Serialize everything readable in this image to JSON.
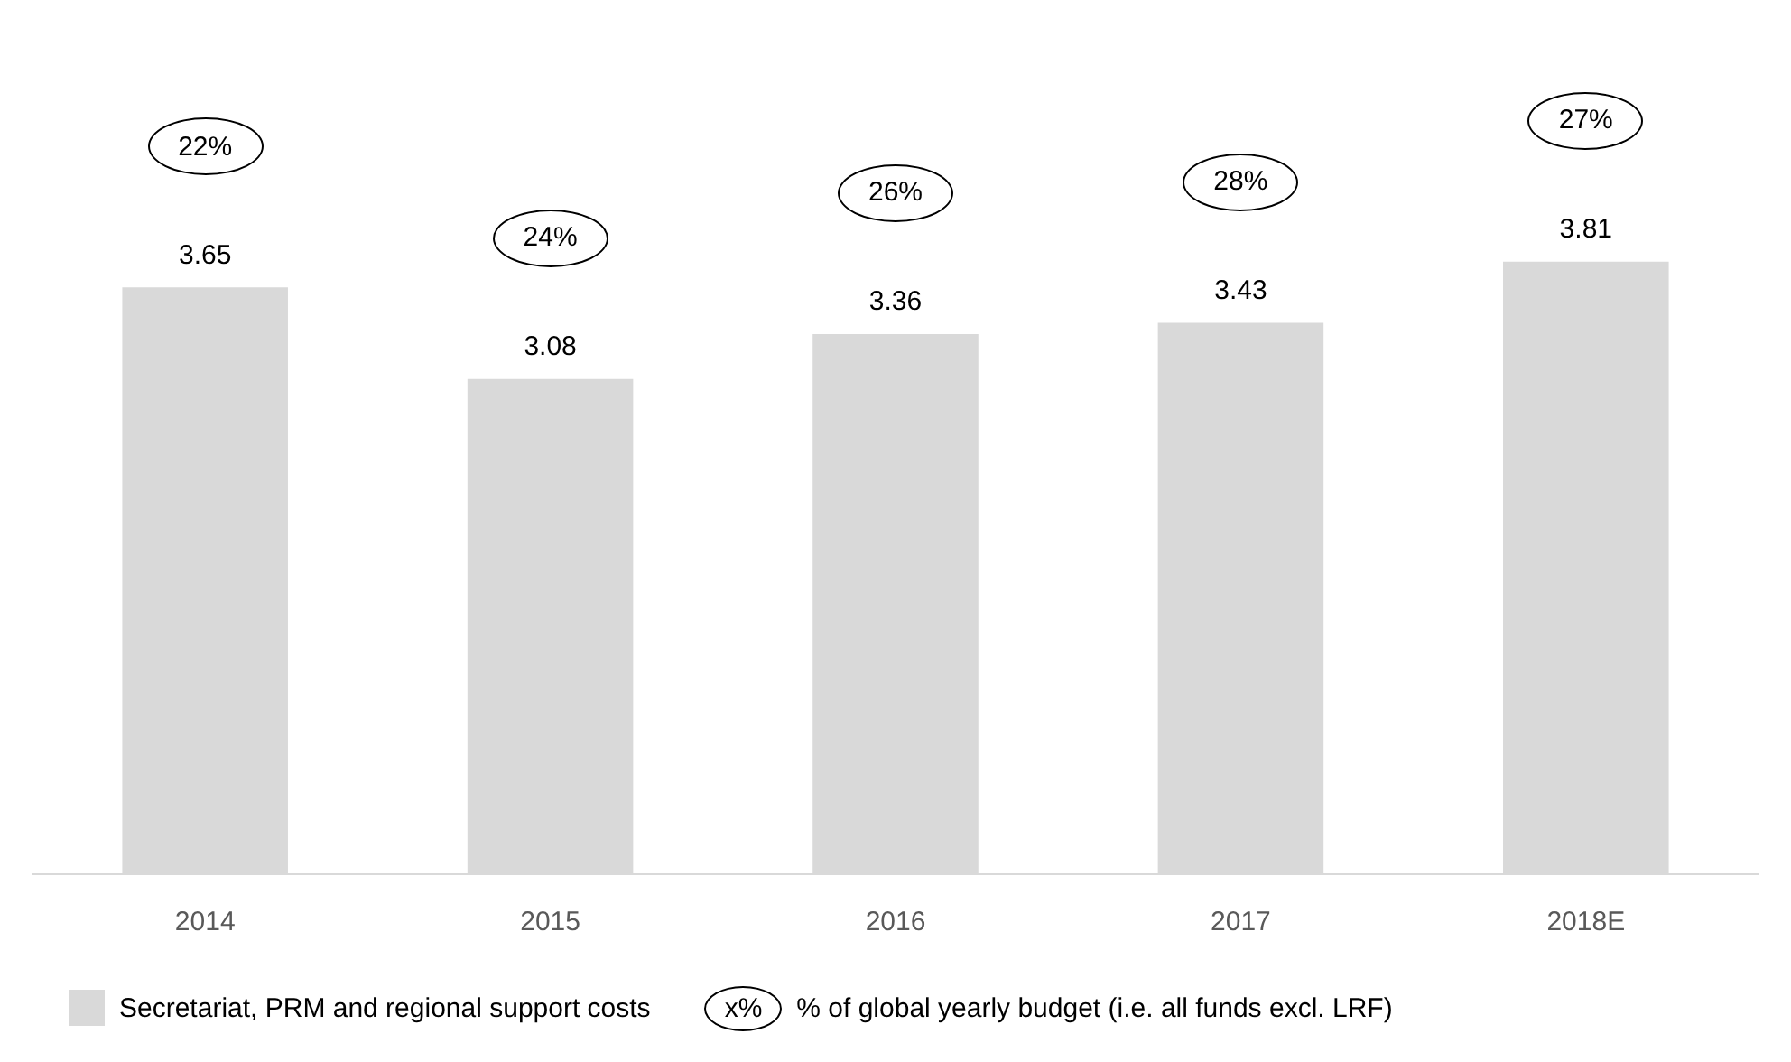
{
  "chart_data": {
    "type": "bar",
    "categories": [
      "2014",
      "2015",
      "2016",
      "2017",
      "2018E"
    ],
    "series": [
      {
        "name": "Secretariat, PRM and regional support costs",
        "color": "#d9d9d9",
        "values": [
          3.65,
          3.08,
          3.36,
          3.43,
          3.81
        ]
      }
    ],
    "tick_labels": "x",
    "data_labels": true,
    "grid": false,
    "legend": "bottom left",
    "annotations": [
      "22%",
      "24%",
      "26%",
      "28%",
      "27%",
      "x%",
      "% of global yearly budget (i.e. all funds excl. LRF)"
    ]
  }
}
